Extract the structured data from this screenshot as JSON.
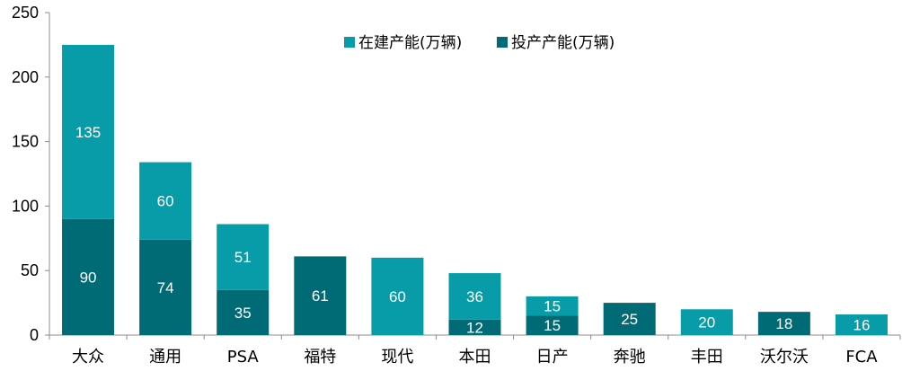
{
  "chart_data": {
    "type": "bar",
    "stacked": true,
    "categories": [
      "大众",
      "通用",
      "PSA",
      "福特",
      "现代",
      "本田",
      "日产",
      "奔驰",
      "丰田",
      "沃尔沃",
      "FCA"
    ],
    "series": [
      {
        "name": "投产产能(万辆)",
        "color": "#006A75",
        "values": [
          90,
          74,
          35,
          61,
          0,
          12,
          15,
          25,
          0,
          18,
          0
        ]
      },
      {
        "name": "在建产能(万辆)",
        "color": "#089CA8",
        "values": [
          135,
          60,
          51,
          0,
          60,
          36,
          15,
          0,
          20,
          0,
          16
        ]
      }
    ],
    "ylim": [
      0,
      250
    ],
    "yticks": [
      0,
      50,
      100,
      150,
      200,
      250
    ],
    "legend_position": "top-center",
    "grid": false,
    "xlabel": "",
    "ylabel": "",
    "title": ""
  }
}
